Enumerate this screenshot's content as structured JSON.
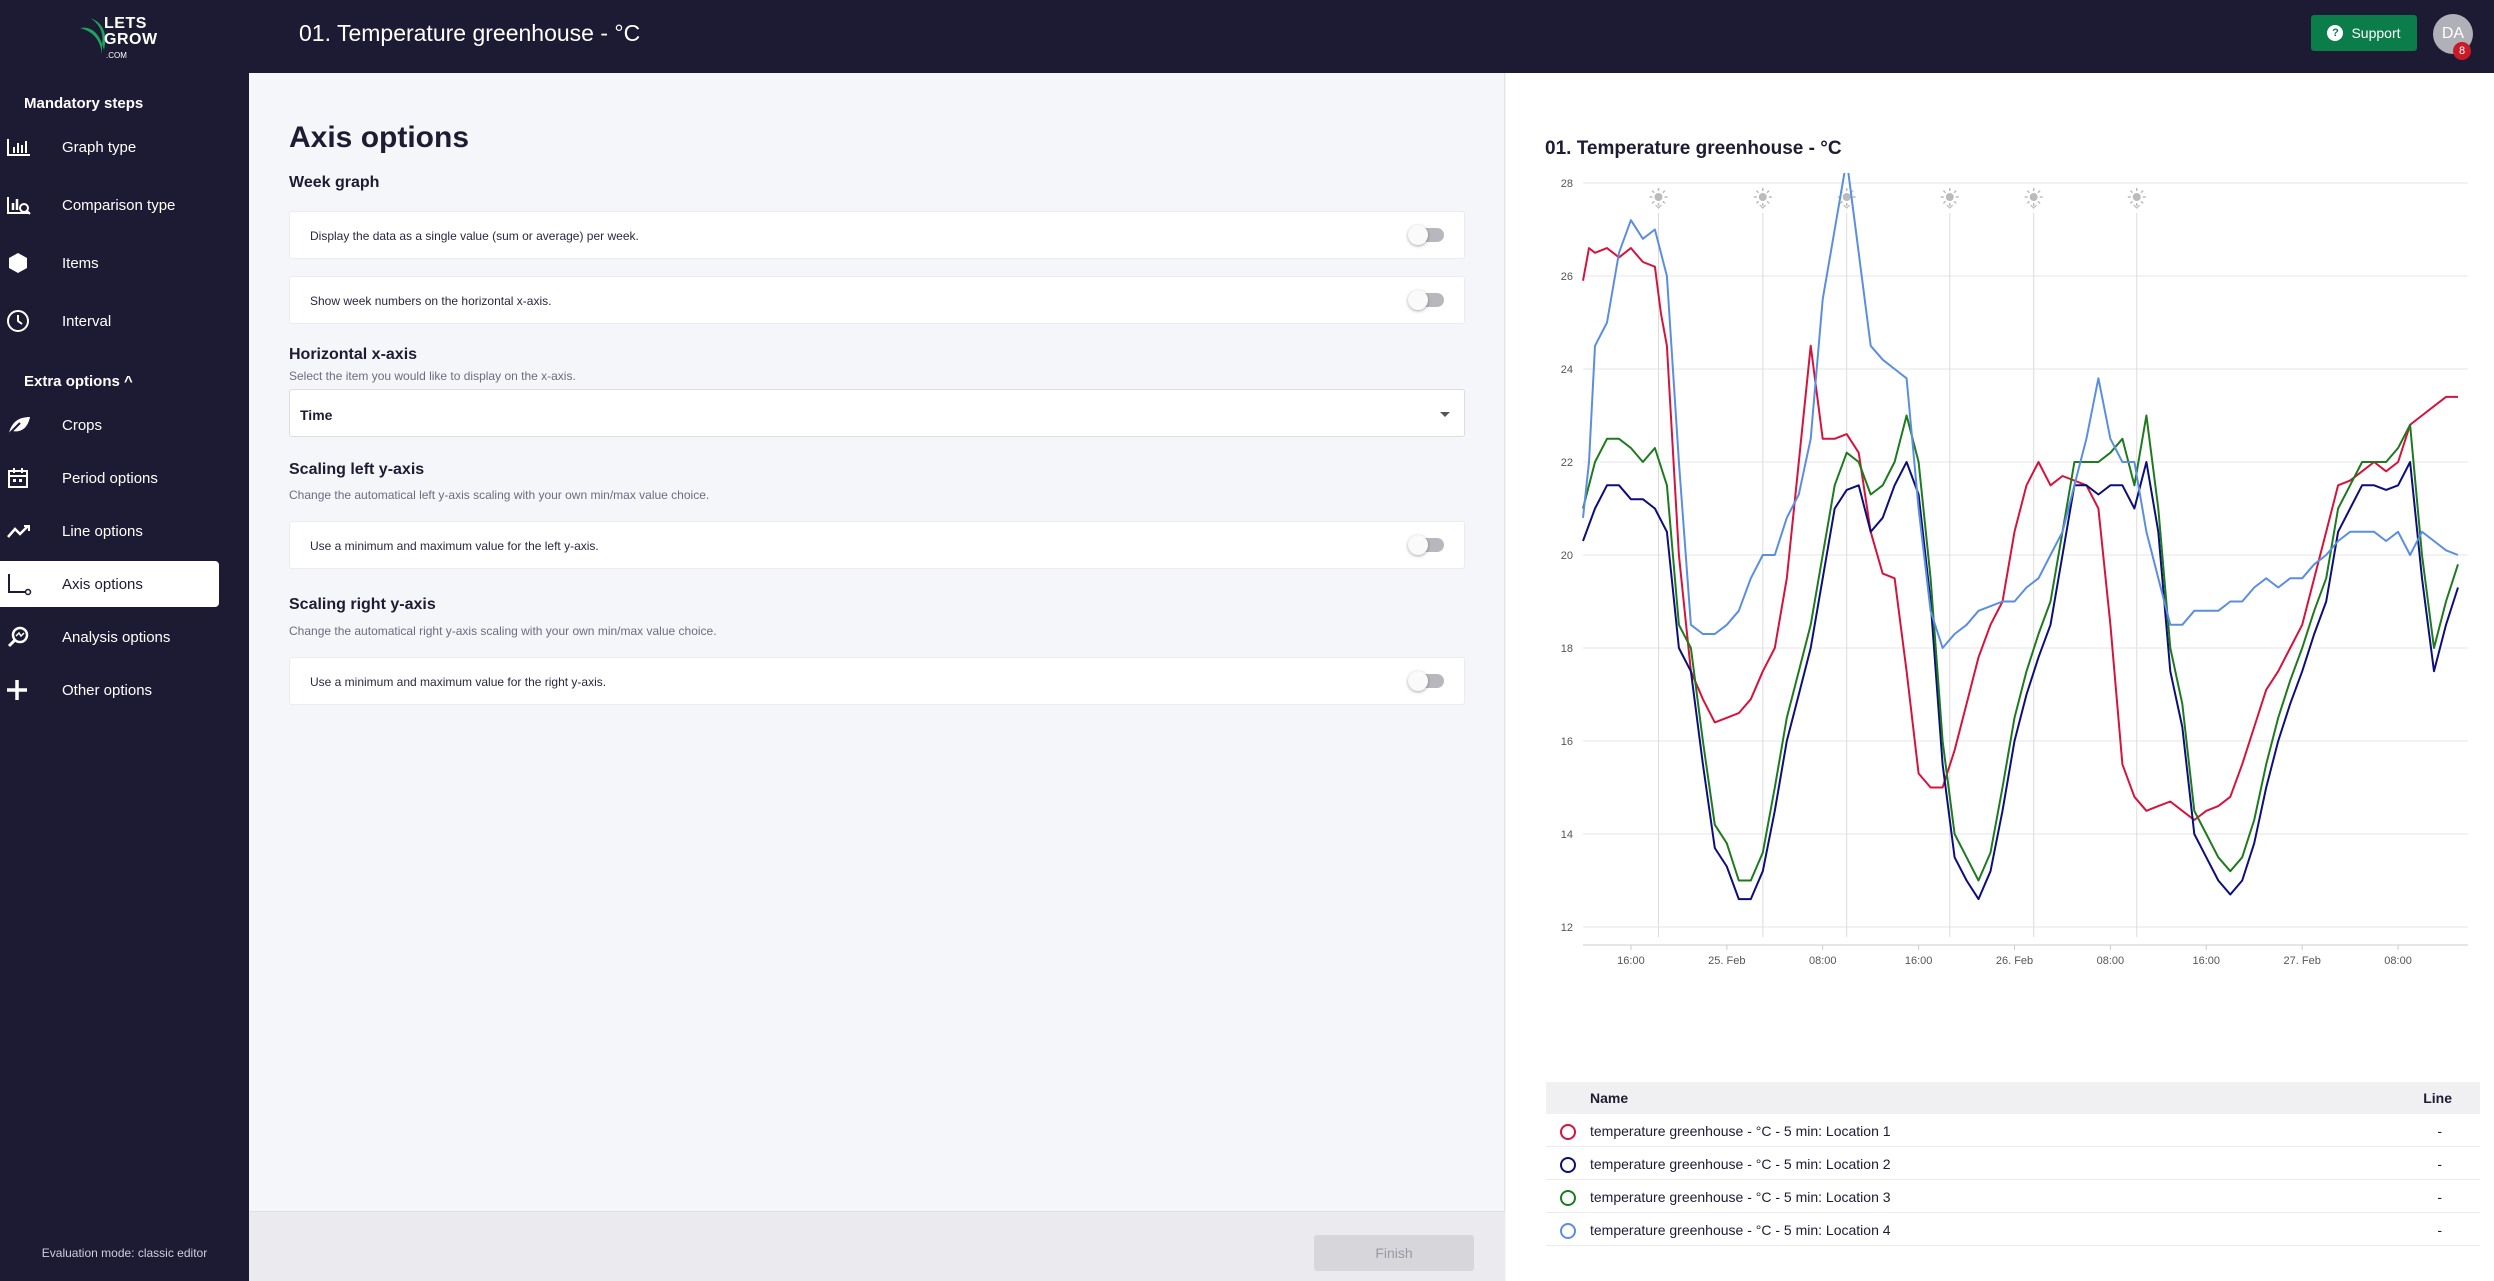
{
  "app": {
    "logo_text": "LETS\nGROW",
    "logo_com": ".COM",
    "page_title": "01. Temperature greenhouse - °C"
  },
  "topbar": {
    "support_label": "Support",
    "avatar_initials": "DA",
    "notification_count": "8"
  },
  "sidebar": {
    "mandatory_title": "Mandatory steps",
    "extra_title": "Extra options ^",
    "mandatory_items": [
      {
        "label": "Graph type",
        "icon": "bar-chart-icon"
      },
      {
        "label": "Comparison type",
        "icon": "comparison-icon"
      },
      {
        "label": "Items",
        "icon": "hexagon-icon"
      },
      {
        "label": "Interval",
        "icon": "clock-icon"
      }
    ],
    "extra_items": [
      {
        "label": "Crops",
        "icon": "leaf-icon"
      },
      {
        "label": "Period options",
        "icon": "calendar-icon"
      },
      {
        "label": "Line options",
        "icon": "line-chart-icon"
      },
      {
        "label": "Axis options",
        "icon": "axis-icon",
        "active": true
      },
      {
        "label": "Analysis options",
        "icon": "magnifier-icon"
      },
      {
        "label": "Other options",
        "icon": "plus-icon"
      }
    ],
    "evaluation_mode": "Evaluation mode: classic editor"
  },
  "settings": {
    "title": "Axis options",
    "week_graph": {
      "title": "Week graph",
      "rows": [
        {
          "text": "Display the data as a single value (sum or average) per week.",
          "enabled": false
        },
        {
          "text": "Show week numbers on the horizontal x-axis.",
          "enabled": false
        }
      ]
    },
    "horizontal_axis": {
      "title": "Horizontal x-axis",
      "description": "Select the item you would like to display on the x-axis.",
      "selected": "Time"
    },
    "scaling_left": {
      "title": "Scaling left y-axis",
      "description": "Change the automatical left y-axis scaling with your own min/max value choice.",
      "row_text": "Use a minimum and maximum value for the left y-axis.",
      "enabled": false
    },
    "scaling_right": {
      "title": "Scaling right y-axis",
      "description": "Change the automatical right y-axis scaling with your own min/max value choice.",
      "row_text": "Use a minimum and maximum value for the right y-axis.",
      "enabled": false
    },
    "finish_label": "Finish"
  },
  "chart_title": "01. Temperature greenhouse - °C",
  "legend": {
    "name_header": "Name",
    "line_header": "Line",
    "rows": [
      {
        "name": "temperature greenhouse - °C - 5 min: Location 1",
        "line": "-",
        "color": "#d4143c"
      },
      {
        "name": "temperature greenhouse - °C - 5 min: Location 2",
        "line": "-",
        "color": "#0c0f7a"
      },
      {
        "name": "temperature greenhouse - °C - 5 min: Location 3",
        "line": "-",
        "color": "#1e7a1e"
      },
      {
        "name": "temperature greenhouse - °C - 5 min: Location 4",
        "line": "-",
        "color": "#5b8ee0"
      }
    ]
  },
  "chart_data": {
    "type": "line",
    "title": "01. Temperature greenhouse - °C",
    "xlabel": "",
    "ylabel": "",
    "ylim": [
      12,
      28
    ],
    "yticks": [
      12,
      14,
      16,
      18,
      20,
      22,
      24,
      26,
      28
    ],
    "xlim": [
      "24 Feb 12:00",
      "27 Feb 12:00"
    ],
    "xtick_labels": [
      "16:00",
      "25. Feb",
      "08:00",
      "16:00",
      "26. Feb",
      "08:00",
      "16:00",
      "27. Feb",
      "08:00"
    ],
    "xtick_hours": [
      4,
      12,
      20,
      28,
      36,
      44,
      52,
      60,
      68
    ],
    "sun_markers_hours": [
      6.3,
      15,
      22,
      30.6,
      37.6,
      46.2
    ],
    "grid": true,
    "series": [
      {
        "name": "temperature greenhouse - °C - 5 min: Location 1",
        "color": "#d4143c",
        "x_hours": [
          0,
          0.5,
          1,
          2,
          3,
          4,
          5,
          6,
          6.5,
          7,
          8,
          9,
          10,
          11,
          12,
          13,
          14,
          15,
          16,
          17,
          18,
          19,
          20,
          21,
          22,
          23,
          24,
          25,
          26,
          27,
          28,
          29,
          30,
          31,
          32,
          33,
          34,
          35,
          36,
          37,
          38,
          39,
          40,
          41,
          42,
          43,
          44,
          45,
          46,
          47,
          48,
          49,
          50,
          51,
          52,
          53,
          54,
          55,
          56,
          57,
          58,
          59,
          60,
          61,
          62,
          63,
          64,
          65,
          66,
          67,
          68,
          69,
          70,
          71,
          72,
          72.5,
          73
        ],
        "y": [
          25.9,
          26.6,
          26.5,
          26.6,
          26.4,
          26.6,
          26.3,
          26.2,
          25.2,
          24.5,
          20.0,
          17.5,
          16.9,
          16.4,
          16.5,
          16.6,
          16.9,
          17.5,
          18.0,
          19.5,
          22.0,
          24.5,
          22.5,
          22.5,
          22.6,
          22.2,
          20.5,
          19.6,
          19.5,
          17.5,
          15.3,
          15.0,
          15.0,
          15.8,
          16.8,
          17.8,
          18.5,
          19.0,
          20.5,
          21.5,
          22.0,
          21.5,
          21.7,
          21.6,
          21.5,
          21.0,
          18.5,
          15.5,
          14.8,
          14.5,
          14.6,
          14.7,
          14.5,
          14.3,
          14.5,
          14.6,
          14.8,
          15.5,
          16.3,
          17.1,
          17.5,
          18.0,
          18.5,
          19.5,
          20.5,
          21.5,
          21.6,
          21.8,
          22.0,
          21.8,
          22.0,
          22.8,
          23.0,
          23.2,
          23.4,
          23.4,
          23.4
        ]
      },
      {
        "name": "temperature greenhouse - °C - 5 min: Location 2",
        "color": "#0c0f7a",
        "x_hours": [
          0,
          1,
          2,
          3,
          4,
          5,
          6,
          7,
          8,
          9,
          10,
          11,
          12,
          13,
          14,
          15,
          16,
          17,
          18,
          19,
          20,
          21,
          22,
          23,
          24,
          25,
          26,
          27,
          28,
          29,
          30,
          31,
          32,
          33,
          34,
          35,
          36,
          37,
          38,
          39,
          40,
          41,
          42,
          43,
          44,
          45,
          46,
          47,
          48,
          49,
          50,
          51,
          52,
          53,
          54,
          55,
          56,
          57,
          58,
          59,
          60,
          61,
          62,
          63,
          64,
          65,
          66,
          67,
          68,
          69,
          70,
          71,
          72,
          73
        ],
        "y": [
          20.3,
          21.0,
          21.5,
          21.5,
          21.2,
          21.2,
          21.0,
          20.5,
          18.0,
          17.5,
          15.5,
          13.7,
          13.3,
          12.6,
          12.6,
          13.2,
          14.5,
          16.0,
          17.0,
          18.0,
          19.5,
          21.0,
          21.4,
          21.5,
          20.5,
          20.8,
          21.5,
          22.0,
          21.3,
          19.0,
          15.5,
          13.5,
          13.0,
          12.6,
          13.2,
          14.5,
          16.0,
          17.0,
          17.8,
          18.5,
          20.0,
          21.5,
          21.5,
          21.3,
          21.5,
          21.5,
          21.0,
          22.0,
          20.5,
          17.5,
          16.3,
          14.0,
          13.5,
          13.0,
          12.7,
          13.0,
          13.8,
          15.0,
          16.0,
          16.8,
          17.5,
          18.3,
          19.0,
          20.5,
          21.0,
          21.5,
          21.5,
          21.4,
          21.5,
          22.0,
          19.5,
          17.5,
          18.5,
          19.3
        ]
      },
      {
        "name": "temperature greenhouse - °C - 5 min: Location 3",
        "color": "#1e7a1e",
        "x_hours": [
          0,
          1,
          2,
          3,
          4,
          5,
          6,
          7,
          8,
          9,
          10,
          11,
          12,
          13,
          14,
          15,
          16,
          17,
          18,
          19,
          20,
          21,
          22,
          23,
          24,
          25,
          26,
          27,
          28,
          29,
          30,
          31,
          32,
          33,
          34,
          35,
          36,
          37,
          38,
          39,
          40,
          41,
          42,
          43,
          44,
          45,
          46,
          47,
          48,
          49,
          50,
          51,
          52,
          53,
          54,
          55,
          56,
          57,
          58,
          59,
          60,
          61,
          62,
          63,
          64,
          65,
          66,
          67,
          68,
          69,
          70,
          71,
          72,
          73
        ],
        "y": [
          21.0,
          22.0,
          22.5,
          22.5,
          22.3,
          22.0,
          22.3,
          21.5,
          18.5,
          18.0,
          16.0,
          14.2,
          13.8,
          13.0,
          13.0,
          13.6,
          15.0,
          16.5,
          17.5,
          18.5,
          20.0,
          21.5,
          22.2,
          22.0,
          21.3,
          21.5,
          22.0,
          23.0,
          22.0,
          19.5,
          16.0,
          14.0,
          13.5,
          13.0,
          13.6,
          15.0,
          16.5,
          17.5,
          18.3,
          19.0,
          20.5,
          22.0,
          22.0,
          22.0,
          22.2,
          22.5,
          21.5,
          23.0,
          21.0,
          18.0,
          16.8,
          14.5,
          14.0,
          13.5,
          13.2,
          13.5,
          14.3,
          15.5,
          16.5,
          17.3,
          18.0,
          18.8,
          19.5,
          21.0,
          21.5,
          22.0,
          22.0,
          22.0,
          22.3,
          22.8,
          20.0,
          18.0,
          19.0,
          19.8
        ]
      },
      {
        "name": "temperature greenhouse - °C - 5 min: Location 4",
        "color": "#5b8ee0",
        "x_hours": [
          0,
          0.5,
          1,
          2,
          3,
          4,
          5,
          6,
          7,
          8,
          9,
          10,
          11,
          12,
          13,
          14,
          15,
          16,
          17,
          18,
          19,
          20,
          21,
          22,
          23,
          24,
          25,
          26,
          27,
          28,
          29,
          30,
          31,
          32,
          33,
          34,
          35,
          36,
          37,
          38,
          39,
          40,
          41,
          42,
          43,
          44,
          45,
          46,
          47,
          48,
          49,
          50,
          51,
          52,
          53,
          54,
          55,
          56,
          57,
          58,
          59,
          60,
          61,
          62,
          63,
          64,
          65,
          66,
          67,
          68,
          69,
          70,
          71,
          72,
          73
        ],
        "y": [
          20.8,
          22.0,
          24.5,
          25.0,
          26.5,
          27.2,
          26.8,
          27.0,
          26.0,
          22.0,
          18.5,
          18.3,
          18.3,
          18.5,
          18.8,
          19.5,
          20.0,
          20.0,
          20.8,
          21.3,
          22.5,
          25.5,
          27.0,
          28.5,
          26.5,
          24.5,
          24.2,
          24.0,
          23.8,
          21.0,
          18.8,
          18.0,
          18.3,
          18.5,
          18.8,
          18.9,
          19.0,
          19.0,
          19.3,
          19.5,
          20.0,
          20.5,
          21.5,
          22.5,
          23.8,
          22.5,
          22.0,
          22.0,
          20.5,
          19.5,
          18.5,
          18.5,
          18.8,
          18.8,
          18.8,
          19.0,
          19.0,
          19.3,
          19.5,
          19.3,
          19.5,
          19.5,
          19.8,
          20.0,
          20.3,
          20.5,
          20.5,
          20.5,
          20.3,
          20.5,
          20.0,
          20.5,
          20.3,
          20.1,
          20.0
        ]
      }
    ]
  }
}
